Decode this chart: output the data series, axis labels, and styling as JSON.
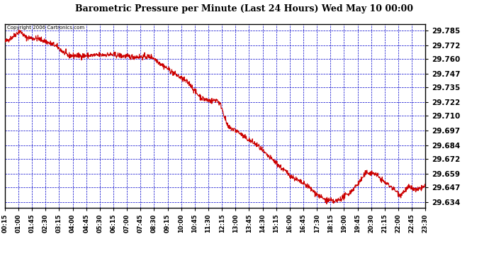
{
  "title": "Barometric Pressure per Minute (Last 24 Hours) Wed May 10 00:00",
  "copyright_text": "Copyright 2006 Cartronics.com",
  "line_color": "#cc0000",
  "background_color": "#ffffff",
  "grid_color": "#0000cc",
  "border_color": "#000000",
  "title_color": "#000000",
  "y_ticks": [
    29.785,
    29.772,
    29.76,
    29.747,
    29.735,
    29.722,
    29.71,
    29.697,
    29.684,
    29.672,
    29.659,
    29.647,
    29.634
  ],
  "ylim": [
    29.629,
    29.791
  ],
  "x_tick_labels": [
    "00:15",
    "01:00",
    "01:45",
    "02:30",
    "03:15",
    "04:00",
    "04:45",
    "05:30",
    "06:15",
    "07:00",
    "07:45",
    "08:30",
    "09:15",
    "10:00",
    "10:45",
    "11:30",
    "12:15",
    "13:00",
    "13:45",
    "14:30",
    "15:15",
    "16:00",
    "16:45",
    "17:30",
    "18:15",
    "19:00",
    "19:45",
    "20:30",
    "21:15",
    "22:00",
    "22:45",
    "23:30"
  ],
  "waypoints_t": [
    0,
    0.02,
    0.035,
    0.05,
    0.08,
    0.12,
    0.15,
    0.2,
    0.25,
    0.3,
    0.35,
    0.37,
    0.4,
    0.42,
    0.44,
    0.455,
    0.47,
    0.49,
    0.505,
    0.515,
    0.53,
    0.55,
    0.57,
    0.6,
    0.62,
    0.64,
    0.66,
    0.68,
    0.7,
    0.72,
    0.74,
    0.76,
    0.785,
    0.8,
    0.82,
    0.84,
    0.86,
    0.88,
    0.9,
    0.92,
    0.94,
    0.96,
    0.98,
    1.0
  ],
  "waypoints_v": [
    29.775,
    29.78,
    29.785,
    29.779,
    29.778,
    29.772,
    29.763,
    29.763,
    29.764,
    29.762,
    29.762,
    29.756,
    29.748,
    29.743,
    29.738,
    29.73,
    29.725,
    29.723,
    29.724,
    29.718,
    29.7,
    29.697,
    29.691,
    29.684,
    29.676,
    29.67,
    29.663,
    29.657,
    29.652,
    29.648,
    29.641,
    29.636,
    29.634,
    29.637,
    29.642,
    29.65,
    29.66,
    29.659,
    29.652,
    29.647,
    29.64,
    29.647,
    29.644,
    29.648
  ],
  "noise_seed": 42,
  "noise_std": 0.0012
}
